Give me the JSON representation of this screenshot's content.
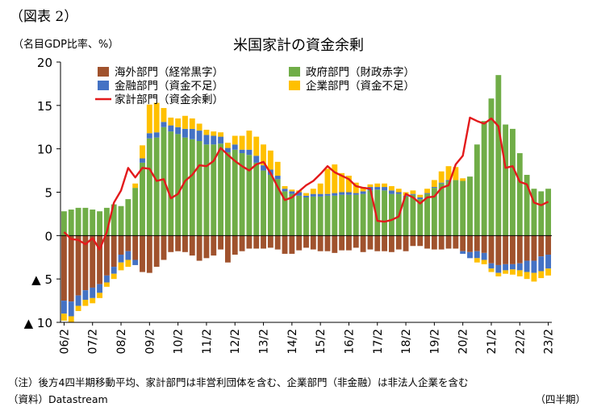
{
  "figure_label": "（図表 2）",
  "unit_label": "（名目GDP比率、%）",
  "note": "（注）後方4四半期移動平均、家計部門は非営利団体を含む、企業部門（非金融）は非法人企業を含む",
  "source": "（資料）Datastream",
  "period_label": "（四半期）",
  "colors": {
    "foreign": "#A0522D",
    "government": "#70AD47",
    "financial": "#4472C4",
    "corporate": "#FFC000",
    "household": "#E31A1C"
  },
  "chart_data": {
    "type": "bar",
    "stacked": true,
    "title": "米国家計の資金余剰",
    "xlabel": "",
    "ylabel": "（名目GDP比率、%）",
    "ylim": [
      -10,
      20
    ],
    "yticks": [
      {
        "value": 20,
        "label": "20"
      },
      {
        "value": 15,
        "label": "15"
      },
      {
        "value": 10,
        "label": "10"
      },
      {
        "value": 5,
        "label": "5"
      },
      {
        "value": 0,
        "label": "0"
      },
      {
        "value": -5,
        "label": "▲ 5"
      },
      {
        "value": -10,
        "label": "▲ 10"
      }
    ],
    "xtick_labels": [
      "06/2",
      "07/2",
      "08/2",
      "09/2",
      "10/2",
      "11/2",
      "12/2",
      "13/2",
      "14/2",
      "15/2",
      "16/2",
      "17/2",
      "18/2",
      "19/2",
      "20/2",
      "21/2",
      "22/2",
      "23/2"
    ],
    "legend_position": "top-left",
    "gridlines": false,
    "categories": [
      "06/2",
      "06/3",
      "06/4",
      "07/1",
      "07/2",
      "07/3",
      "07/4",
      "08/1",
      "08/2",
      "08/3",
      "08/4",
      "09/1",
      "09/2",
      "09/3",
      "09/4",
      "10/1",
      "10/2",
      "10/3",
      "10/4",
      "11/1",
      "11/2",
      "11/3",
      "11/4",
      "12/1",
      "12/2",
      "12/3",
      "12/4",
      "13/1",
      "13/2",
      "13/3",
      "13/4",
      "14/1",
      "14/2",
      "14/3",
      "14/4",
      "15/1",
      "15/2",
      "15/3",
      "15/4",
      "16/1",
      "16/2",
      "16/3",
      "16/4",
      "17/1",
      "17/2",
      "17/3",
      "17/4",
      "18/1",
      "18/2",
      "18/3",
      "18/4",
      "19/1",
      "19/2",
      "19/3",
      "19/4",
      "20/1",
      "20/2",
      "20/3",
      "20/4",
      "21/1",
      "21/2",
      "21/3",
      "21/4",
      "22/1",
      "22/2",
      "22/3",
      "22/4",
      "23/1",
      "23/2"
    ],
    "series": [
      {
        "name": "海外部門（経常黒字）",
        "type": "bar",
        "color_key": "foreign",
        "values": [
          -7.5,
          -7.6,
          -6.9,
          -6.3,
          -6.0,
          -5.6,
          -4.6,
          -3.6,
          -2.2,
          -1.8,
          -2.8,
          -4.2,
          -4.3,
          -3.6,
          -2.8,
          -1.9,
          -1.8,
          -1.9,
          -2.3,
          -2.9,
          -2.6,
          -2.3,
          -1.6,
          -3.1,
          -2.2,
          -1.8,
          -1.5,
          -1.5,
          -1.5,
          -1.4,
          -1.6,
          -2.1,
          -2.1,
          -1.7,
          -1.4,
          -1.6,
          -1.8,
          -1.8,
          -2.0,
          -1.7,
          -1.7,
          -1.4,
          -1.9,
          -1.6,
          -1.8,
          -1.8,
          -1.9,
          -1.6,
          -1.8,
          -1.2,
          -1.2,
          -1.5,
          -1.6,
          -1.6,
          -1.5,
          -1.5,
          -1.8,
          -1.9,
          -1.8,
          -2.0,
          -3.2,
          -3.4,
          -3.3,
          -3.3,
          -3.2,
          -2.9,
          -2.9,
          -2.4,
          -2.2
        ]
      },
      {
        "name": "政府部門（財政赤字）",
        "type": "bar",
        "color_key": "government",
        "values": [
          2.8,
          3.0,
          3.2,
          3.2,
          3.0,
          2.8,
          3.2,
          3.6,
          3.4,
          4.2,
          5.5,
          8.4,
          11.2,
          11.3,
          12.5,
          12.0,
          11.7,
          11.3,
          11.1,
          10.9,
          10.5,
          10.5,
          10.6,
          9.6,
          9.9,
          9.5,
          9.3,
          8.4,
          7.5,
          7.0,
          6.5,
          5.1,
          4.8,
          4.6,
          4.4,
          4.5,
          4.5,
          4.6,
          4.6,
          4.7,
          4.7,
          4.7,
          4.8,
          5.2,
          5.3,
          5.2,
          4.8,
          4.8,
          4.5,
          4.7,
          4.2,
          4.8,
          5.5,
          6.0,
          6.3,
          6.4,
          6.3,
          6.8,
          10.5,
          13.2,
          15.8,
          18.5,
          12.8,
          12.3,
          9.5,
          7.0,
          5.4,
          5.1,
          5.4
        ]
      },
      {
        "name": "金融部門（資金不足）",
        "type": "bar",
        "color_key": "financial",
        "values": [
          -1.5,
          -1.7,
          -1.2,
          -1.1,
          -1.2,
          -1.0,
          -0.8,
          -0.8,
          -0.9,
          -1.0,
          -0.6,
          0.5,
          0.6,
          0.6,
          0.6,
          0.7,
          0.8,
          1.0,
          1.2,
          1.2,
          1.1,
          1.0,
          0.8,
          0.5,
          0.6,
          0.4,
          0.6,
          0.8,
          0.6,
          0.6,
          0.4,
          0.3,
          0.3,
          0.4,
          0.2,
          0.3,
          0.3,
          0.2,
          0.3,
          0.3,
          0.3,
          0.2,
          0.3,
          0.4,
          0.3,
          0.4,
          0.4,
          0.2,
          0.1,
          0.1,
          0.2,
          0.1,
          0.1,
          0.1,
          0.1,
          0.0,
          -0.3,
          -0.7,
          -0.8,
          -0.8,
          -0.6,
          -0.9,
          -0.7,
          -0.6,
          -0.8,
          -1.3,
          -1.4,
          -1.7,
          -1.6
        ]
      },
      {
        "name": "企業部門（資金不足）",
        "type": "bar",
        "color_key": "corporate",
        "values": [
          -0.8,
          -0.7,
          -0.6,
          -0.7,
          -0.6,
          -0.6,
          -0.5,
          -0.6,
          -0.9,
          -0.8,
          0.5,
          1.5,
          3.3,
          3.4,
          1.6,
          0.9,
          1.0,
          1.5,
          1.2,
          0.8,
          0.6,
          0.5,
          0.5,
          0.6,
          1.0,
          1.6,
          2.2,
          2.2,
          2.4,
          2.2,
          1.6,
          0.3,
          0.2,
          0.2,
          0.3,
          0.6,
          1.2,
          2.9,
          3.3,
          2.2,
          1.9,
          1.2,
          0.5,
          0.3,
          0.4,
          0.4,
          0.5,
          0.4,
          0.4,
          0.4,
          0.3,
          0.5,
          0.8,
          1.3,
          1.6,
          1.5,
          0.3,
          0.0,
          -0.5,
          -0.5,
          -0.4,
          -0.4,
          -0.4,
          -0.6,
          -0.7,
          -0.8,
          -1.0,
          -0.8,
          -0.8
        ]
      },
      {
        "name": "家計部門（資金余剰）",
        "type": "line",
        "color_key": "household",
        "values": [
          0.4,
          -0.4,
          -0.5,
          -1.0,
          -0.3,
          -1.6,
          0.4,
          3.8,
          5.2,
          7.8,
          6.7,
          7.8,
          7.7,
          6.3,
          6.5,
          4.3,
          4.8,
          6.3,
          7.0,
          8.1,
          8.0,
          8.6,
          10.1,
          9.3,
          8.6,
          8.0,
          7.5,
          8.2,
          8.5,
          7.2,
          5.6,
          4.1,
          4.4,
          5.1,
          5.8,
          6.3,
          7.1,
          8.0,
          7.3,
          6.9,
          6.5,
          5.7,
          5.5,
          5.4,
          1.7,
          1.6,
          1.8,
          2.2,
          4.8,
          4.4,
          3.7,
          4.4,
          4.5,
          5.5,
          5.8,
          8.2,
          9.2,
          13.6,
          13.2,
          12.9,
          13.5,
          12.6,
          7.8,
          8.0,
          6.2,
          5.9,
          3.8,
          3.5,
          3.9
        ]
      }
    ]
  }
}
